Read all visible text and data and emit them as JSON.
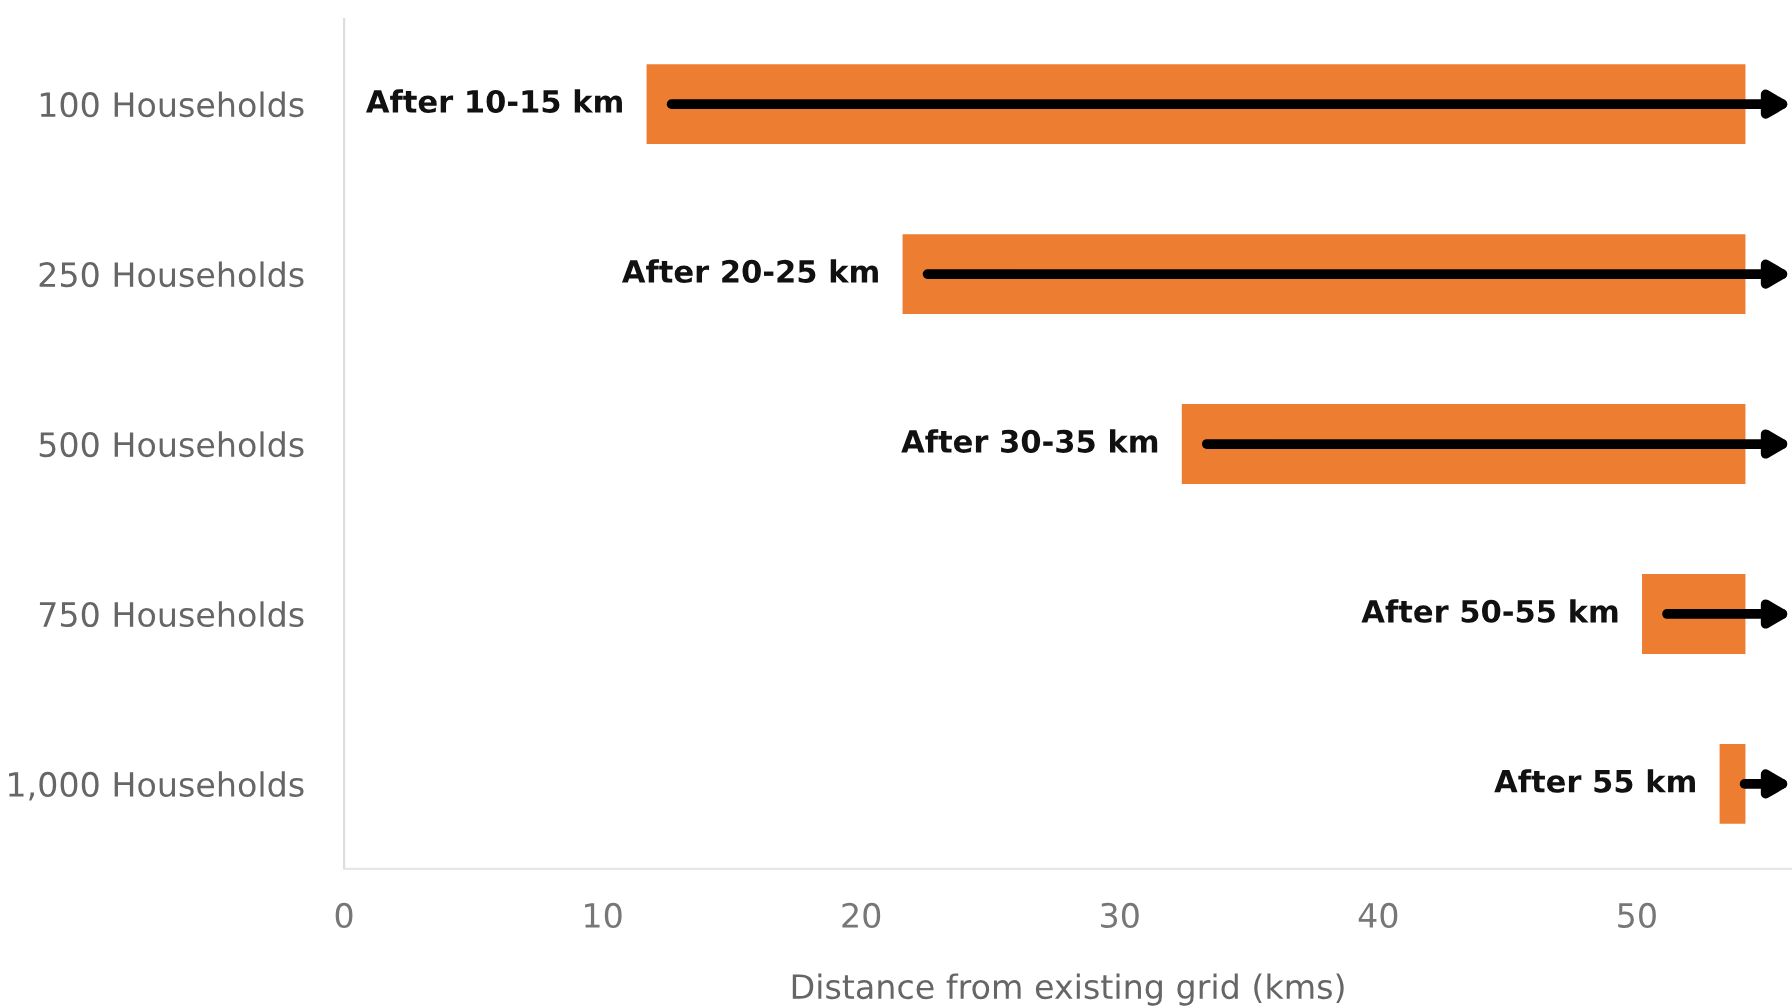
{
  "chart_data": {
    "type": "bar",
    "orientation": "horizontal",
    "xlabel": "Distance from existing grid (kms)",
    "categories": [
      "100 Households",
      "250 Households",
      "500 Households",
      "750 Households",
      "1,000 Households"
    ],
    "base": [
      11.7,
      21.6,
      32.4,
      50.2,
      53.2
    ],
    "values": [
      42.5,
      32.6,
      21.8,
      4.0,
      1.0
    ],
    "color": "#ed7d31",
    "xlim": [
      0,
      56
    ],
    "xticks": [
      0,
      10,
      20,
      30,
      40,
      50
    ],
    "grid": false,
    "legend": false,
    "annotations": [
      {
        "text": "After 10-15 km",
        "x": 11.7,
        "y": "100 Households"
      },
      {
        "text": "After 20-25 km",
        "x": 21.6,
        "y": "250 Households"
      },
      {
        "text": "After 30-35 km",
        "x": 32.4,
        "y": "500 Households"
      },
      {
        "text": "After 50-55 km",
        "x": 50.2,
        "y": "750 Households"
      },
      {
        "text": "After 55 km",
        "x": 53.2,
        "y": "1,000 Households"
      }
    ]
  }
}
